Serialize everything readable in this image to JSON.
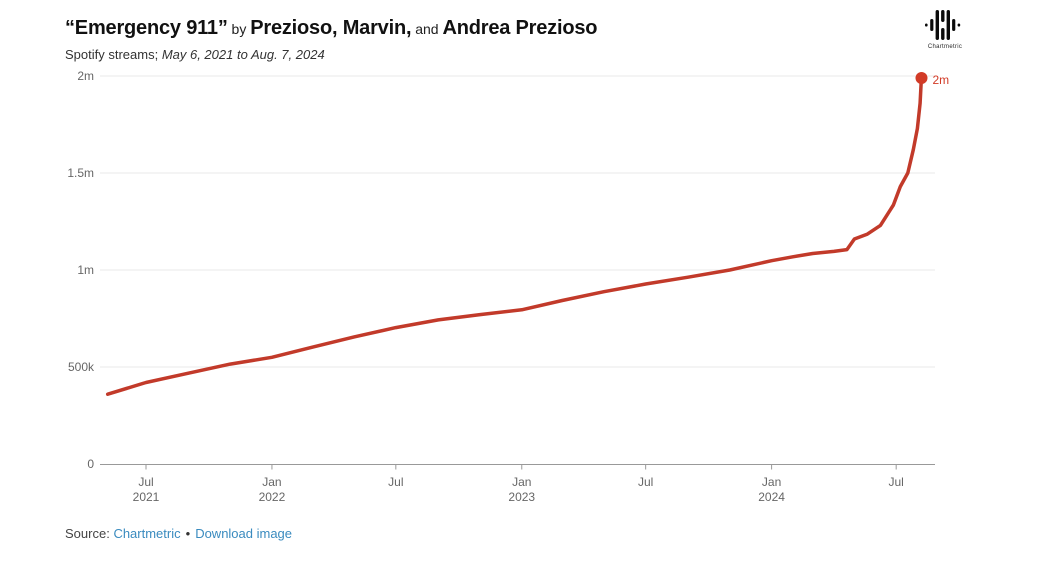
{
  "header": {
    "title": {
      "segments": [
        {
          "text": "“Emergency 911”",
          "style": "big"
        },
        {
          "text": " by ",
          "style": "small"
        },
        {
          "text": "Prezioso, Marvin,",
          "style": "big"
        },
        {
          "text": " and ",
          "style": "small"
        },
        {
          "text": "Andrea Prezioso",
          "style": "big"
        }
      ]
    },
    "subtitle": {
      "prefix": "Spotify streams; ",
      "range": "May 6, 2021 to Aug. 7, 2024"
    }
  },
  "logo": {
    "brand": "Chartmetric"
  },
  "footer": {
    "source_label": "Source:",
    "source_link": "Chartmetric",
    "separator": "•",
    "download_link": "Download image",
    "link_color": "#3a8bbf"
  },
  "chart_data": {
    "type": "line",
    "title": "“Emergency 911” by Prezioso, Marvin, and Andrea Prezioso",
    "subtitle": "Spotify streams; May 6, 2021 to Aug. 7, 2024",
    "series_name": "Spotify streams",
    "ylim": [
      0,
      2000000
    ],
    "x_range": [
      "2021-05-06",
      "2024-08-07"
    ],
    "grid": "horizontal",
    "legend": "none",
    "line_color": "#c23a2a",
    "dot_color": "#d23b27",
    "end_label": "2m",
    "y_ticks": [
      {
        "value": 0,
        "label": "0"
      },
      {
        "value": 500000,
        "label": "500k"
      },
      {
        "value": 1000000,
        "label": "1m"
      },
      {
        "value": 1500000,
        "label": "1.5m"
      },
      {
        "value": 2000000,
        "label": "2m"
      }
    ],
    "x_ticks": [
      {
        "date": "2021-07-01",
        "month": "Jul",
        "year": "2021"
      },
      {
        "date": "2022-01-01",
        "month": "Jan",
        "year": "2022"
      },
      {
        "date": "2022-07-01",
        "month": "Jul",
        "year": ""
      },
      {
        "date": "2023-01-01",
        "month": "Jan",
        "year": "2023"
      },
      {
        "date": "2023-07-01",
        "month": "Jul",
        "year": ""
      },
      {
        "date": "2024-01-01",
        "month": "Jan",
        "year": "2024"
      },
      {
        "date": "2024-07-01",
        "month": "Jul",
        "year": ""
      }
    ],
    "points": [
      [
        "2021-05-06",
        360000
      ],
      [
        "2021-07-01",
        420000
      ],
      [
        "2021-09-01",
        468000
      ],
      [
        "2021-11-01",
        515000
      ],
      [
        "2022-01-01",
        550000
      ],
      [
        "2022-03-01",
        602000
      ],
      [
        "2022-05-01",
        655000
      ],
      [
        "2022-07-01",
        703000
      ],
      [
        "2022-09-01",
        743000
      ],
      [
        "2022-11-01",
        770000
      ],
      [
        "2023-01-01",
        795000
      ],
      [
        "2023-03-01",
        843000
      ],
      [
        "2023-05-01",
        888000
      ],
      [
        "2023-07-01",
        928000
      ],
      [
        "2023-09-01",
        963000
      ],
      [
        "2023-11-01",
        1000000
      ],
      [
        "2024-01-01",
        1048000
      ],
      [
        "2024-02-01",
        1068000
      ],
      [
        "2024-03-01",
        1085000
      ],
      [
        "2024-04-01",
        1096000
      ],
      [
        "2024-04-20",
        1105000
      ],
      [
        "2024-05-01",
        1160000
      ],
      [
        "2024-05-20",
        1185000
      ],
      [
        "2024-06-08",
        1230000
      ],
      [
        "2024-06-27",
        1335000
      ],
      [
        "2024-07-07",
        1430000
      ],
      [
        "2024-07-18",
        1500000
      ],
      [
        "2024-07-26",
        1620000
      ],
      [
        "2024-08-01",
        1730000
      ],
      [
        "2024-08-05",
        1860000
      ],
      [
        "2024-08-07",
        2000000
      ]
    ]
  }
}
